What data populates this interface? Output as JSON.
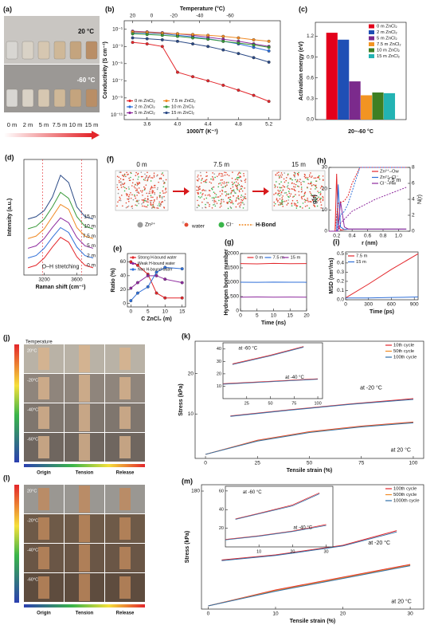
{
  "panels": {
    "a": {
      "label": "(a)",
      "temps": [
        "20 °C",
        "-60 °C"
      ],
      "concentrations": [
        "0 m",
        "2 m",
        "5 m",
        "7.5 m",
        "10 m",
        "15 m"
      ]
    },
    "f": {
      "label": "(f)",
      "snapshots": [
        "0 m",
        "7.5 m",
        "15 m"
      ],
      "legend": [
        "Zn²⁺",
        "water",
        "Cl⁻",
        "H-Bond"
      ]
    },
    "j": {
      "label": "(j)",
      "scale_title": "Temperature",
      "temps": [
        "20°C",
        "-20°C",
        "-40°C",
        "-60°C"
      ],
      "columns": [
        "Origin",
        "Tension",
        "Release"
      ]
    },
    "l": {
      "label": "(l)",
      "temps": [
        "20°C",
        "-20°C",
        "-40°C",
        "-60°C"
      ],
      "columns": [
        "Origin",
        "Tension",
        "Release"
      ]
    }
  },
  "chart_data": [
    {
      "label": "(b)",
      "type": "line",
      "log": true,
      "markers": true,
      "legend": "lower left",
      "top_label": "Temperature (°C)",
      "x_label": "1000/T (K⁻¹)",
      "y_label": "Conductivity (S cm⁻¹)",
      "x": [
        3.41,
        3.6,
        3.8,
        4.0,
        4.2,
        4.4,
        4.6,
        4.8,
        5.0,
        5.2
      ],
      "xlim": [
        3.3,
        5.35
      ],
      "xticks": [
        3.6,
        {
          "value": 4,
          "label": "4.0"
        },
        4.4,
        4.8,
        5.2
      ],
      "top_ticks": [
        {
          "value": 3.41,
          "label": "20"
        },
        {
          "value": 3.66,
          "label": "0"
        },
        {
          "value": 3.95,
          "label": "-20"
        },
        {
          "value": 4.29,
          "label": "-40"
        },
        {
          "value": 4.69,
          "label": "-60"
        }
      ],
      "ylim": [
        3e-12,
        1
      ],
      "yticks": [
        {
          "value": 0.1,
          "label": "10⁻¹"
        },
        {
          "value": 0.001,
          "label": "10⁻³"
        },
        {
          "value": 1e-05,
          "label": "10⁻⁵"
        },
        {
          "value": 1e-07,
          "label": "10⁻⁷"
        },
        {
          "value": 1e-09,
          "label": "10⁻⁹"
        },
        {
          "value": 1e-11,
          "label": "10⁻¹¹"
        }
      ],
      "series": [
        {
          "name": "0 m ZnCl₂",
          "color": "#e3262b",
          "values": [
            0.003,
            0.002,
            0.001,
            1e-06,
            3e-07,
            1e-07,
            3e-08,
            8e-09,
            2e-09,
            4e-10
          ]
        },
        {
          "name": "2 m ZnCl₂",
          "color": "#2f6fd8",
          "values": [
            0.04,
            0.035,
            0.03,
            0.02,
            0.013,
            0.008,
            0.004,
            0.002,
            0.0008,
            0.0003
          ]
        },
        {
          "name": "5 m ZnCl₂",
          "color": "#8e2a9e",
          "values": [
            0.06,
            0.05,
            0.04,
            0.03,
            0.02,
            0.012,
            0.007,
            0.004,
            0.002,
            0.001
          ]
        },
        {
          "name": "7.5 m ZnCl₂",
          "color": "#f08a24",
          "values": [
            0.05,
            0.045,
            0.035,
            0.03,
            0.025,
            0.02,
            0.015,
            0.01,
            0.006,
            0.004
          ]
        },
        {
          "name": "10 m ZnCl₂",
          "color": "#3a9a3a",
          "values": [
            0.03,
            0.025,
            0.02,
            0.015,
            0.01,
            0.007,
            0.004,
            0.0025,
            0.0015,
            0.0008
          ]
        },
        {
          "name": "15 m ZnCl₂",
          "color": "#2b4a86",
          "values": [
            0.01,
            0.008,
            0.006,
            0.004,
            0.002,
            0.001,
            0.0004,
            0.00015,
            5e-05,
            1.5e-05
          ]
        }
      ]
    },
    {
      "label": "(c)",
      "type": "bar",
      "legend": "upper right",
      "x_label": "20~-60 °C",
      "y_label": "Activation energy (eV)",
      "categories": [
        "0 m ZnCl₂",
        "2 m ZnCl₂",
        "5 m ZnCl₂",
        "7.5 m ZnCl₂",
        "10 m ZnCl₂",
        "15 m ZnCl₂"
      ],
      "values": [
        1.25,
        1.15,
        0.55,
        0.35,
        0.39,
        0.38
      ],
      "colors": [
        "#e3001b",
        "#1f4fb5",
        "#7b2a8c",
        "#f29422",
        "#3d7f23",
        "#23b3b3"
      ],
      "ylim": [
        0,
        1.4
      ],
      "yticks": [
        {
          "value": 0,
          "label": "0.0"
        },
        0.3,
        0.6,
        0.9,
        1.2
      ]
    },
    {
      "label": "(d)",
      "type": "line",
      "legend": "inline",
      "x_label": "Raman shift (cm⁻¹)",
      "y_label": "Intensity (a.u.)",
      "annotations": [
        "O–H stretching"
      ],
      "x": [
        3000,
        3100,
        3200,
        3300,
        3400,
        3500,
        3600,
        3700,
        3800
      ],
      "xlim": [
        2950,
        3850
      ],
      "xticks": [
        3200,
        3600
      ],
      "ylim": [
        0,
        9.5
      ],
      "guide_lines": [
        3180,
        3660
      ],
      "series": [
        {
          "name": "15 m",
          "color": "#2b4a86",
          "values": [
            4.6,
            4.8,
            5.3,
            6.4,
            8.2,
            7.6,
            5.6,
            4.8,
            4.6
          ]
        },
        {
          "name": "10 m",
          "color": "#3a9a3a",
          "values": [
            3.8,
            4.0,
            4.6,
            5.6,
            6.8,
            6.3,
            4.8,
            4.0,
            3.8
          ]
        },
        {
          "name": "7.5 m",
          "color": "#f08a24",
          "values": [
            3.0,
            3.2,
            3.8,
            4.8,
            5.8,
            5.4,
            3.9,
            3.2,
            3.0
          ]
        },
        {
          "name": "5 m",
          "color": "#8e2a9e",
          "values": [
            2.2,
            2.4,
            3.0,
            3.9,
            4.7,
            4.3,
            3.1,
            2.4,
            2.2
          ]
        },
        {
          "name": "2 m",
          "color": "#2f6fd8",
          "values": [
            1.4,
            1.6,
            2.2,
            3.1,
            3.9,
            3.5,
            2.3,
            1.6,
            1.4
          ]
        },
        {
          "name": "0 m",
          "color": "#e3262b",
          "values": [
            0.6,
            0.8,
            1.4,
            2.3,
            3.1,
            2.7,
            1.5,
            0.8,
            0.6
          ]
        }
      ]
    },
    {
      "label": "(e)",
      "type": "line",
      "markers": true,
      "legend": "upper left",
      "x_label": "C ZnCl₂ (m)",
      "y_label": "Ratio (%)",
      "x": [
        0,
        2,
        5,
        7.5,
        10,
        15
      ],
      "xlim": [
        -1,
        16
      ],
      "xticks": [
        0,
        5,
        10,
        15
      ],
      "ylim": [
        -5,
        72
      ],
      "yticks": [
        0,
        20,
        40,
        60
      ],
      "series": [
        {
          "name": "Strong H-bound water",
          "color": "#e3262b",
          "values": [
            60,
            55,
            42,
            15,
            8,
            8
          ]
        },
        {
          "name": "Weak H-bound water",
          "color": "#8e2a9e",
          "values": [
            22,
            30,
            40,
            40,
            35,
            30
          ]
        },
        {
          "name": "Non H-bound water",
          "color": "#2f6fd8",
          "values": [
            4,
            15,
            24,
            45,
            52,
            50
          ]
        }
      ]
    },
    {
      "label": "(g)",
      "type": "line",
      "legend": "upper center",
      "x_label": "Time (ns)",
      "y_label": "Hydrogen bonds number",
      "x": [
        0,
        5,
        10,
        15,
        20
      ],
      "xlim": [
        0,
        20
      ],
      "xticks": [
        0,
        5,
        10,
        15,
        20
      ],
      "ylim": [
        0,
        2000
      ],
      "yticks": [
        0,
        500,
        1000,
        1500,
        2000
      ],
      "series": [
        {
          "name": "0 m",
          "color": "#e3262b",
          "values": [
            1650,
            1640,
            1655,
            1645,
            1650
          ]
        },
        {
          "name": "7.5 m",
          "color": "#2f6fd8",
          "values": [
            1000,
            995,
            1005,
            1000,
            998
          ]
        },
        {
          "name": "15 m",
          "color": "#8e2a9e",
          "values": [
            480,
            485,
            478,
            482,
            480
          ]
        }
      ]
    },
    {
      "label": "(h)",
      "type": "line",
      "legend": "upper right",
      "x_label": "r (nm)",
      "y_label": "g(r)",
      "y2_label": "N(r)",
      "annotations": [
        "7.5 m"
      ],
      "x": [
        0.1,
        0.18,
        0.2,
        0.22,
        0.25,
        0.3,
        0.35,
        0.4,
        0.5,
        0.7,
        1.1
      ],
      "xlim": [
        0.1,
        1.15
      ],
      "xticks": [
        0.2,
        0.4,
        0.6,
        0.8,
        {
          "value": 1,
          "label": "1.0"
        }
      ],
      "ylim": [
        0,
        30
      ],
      "yticks": [
        0,
        10,
        20,
        30
      ],
      "y2lim": [
        0,
        8
      ],
      "y2ticks": [
        0,
        2,
        4,
        6,
        8
      ],
      "series": [
        {
          "name": "Zn²⁺–Ow",
          "color": "#e3262b",
          "values": [
            0,
            0,
            27,
            3,
            0.5,
            0.8,
            1,
            1,
            1,
            1,
            1
          ]
        },
        {
          "name": "Zn²⁺–Cl⁻",
          "color": "#2f6fd8",
          "values": [
            0,
            0,
            0,
            22,
            2,
            0.8,
            1,
            1,
            1,
            1,
            1
          ]
        },
        {
          "name": "Cl⁻–Hw",
          "color": "#8e2a9e",
          "values": [
            0,
            0,
            0,
            1,
            14,
            2,
            1,
            1,
            1,
            1,
            1
          ]
        },
        {
          "color": "#e3262b",
          "axis": "y2",
          "dash": true,
          "values": [
            0,
            0,
            2,
            3.5,
            3.6,
            3.8,
            4.5,
            6,
            8,
            8,
            8
          ]
        },
        {
          "color": "#2f6fd8",
          "axis": "y2",
          "dash": true,
          "values": [
            0,
            0,
            0,
            1,
            2,
            2.5,
            3.5,
            5,
            8,
            8,
            8
          ]
        },
        {
          "color": "#8e2a9e",
          "axis": "y2",
          "dash": true,
          "values": [
            0,
            0,
            0,
            0,
            1,
            1.5,
            2,
            2.5,
            3,
            4,
            5.5
          ]
        }
      ]
    },
    {
      "label": "(i)",
      "type": "line",
      "legend": "upper left",
      "x_label": "Time (ps)",
      "y_label": "MSD (nm²/ns)",
      "x": [
        0,
        300,
        600,
        950
      ],
      "xlim": [
        0,
        950
      ],
      "xticks": [
        0,
        300,
        600,
        900
      ],
      "ylim": [
        0,
        0.52
      ],
      "yticks": [
        {
          "value": 0,
          "label": "0.0"
        },
        0.1,
        0.2,
        0.3,
        0.4,
        0.5
      ],
      "series": [
        {
          "name": "7.5 m",
          "color": "#e3262b",
          "values": [
            0.02,
            0.17,
            0.33,
            0.5
          ]
        },
        {
          "name": "15 m",
          "color": "#2f6fd8",
          "values": [
            0.02,
            0.02,
            0.025,
            0.03
          ]
        }
      ]
    },
    {
      "label": "(k)",
      "type": "line",
      "legend": "upper right",
      "x_label": "Tensile strain (%)",
      "y_label": "Stress (kPa)",
      "annotations": [
        "at -20 °C",
        "at 20 °C"
      ],
      "xlim": [
        -5,
        105
      ],
      "xticks": [
        0,
        25,
        50,
        75,
        100
      ],
      "ylim": [
        -1,
        28
      ],
      "yticks": [
        10,
        20
      ],
      "series": [
        {
          "name": "10th cycle",
          "color": "#e3262b",
          "x": [
            0,
            25,
            50,
            75,
            100
          ],
          "values": [
            0,
            3.5,
            5.6,
            7,
            8
          ]
        },
        {
          "name": "50th cycle",
          "color": "#f08a24",
          "x": [
            0,
            25,
            50,
            75,
            100
          ],
          "values": [
            0,
            3.4,
            5.5,
            6.9,
            7.9
          ]
        },
        {
          "name": "100th cycle",
          "color": "#2f6fa8",
          "x": [
            0,
            25,
            50,
            75,
            100
          ],
          "values": [
            0,
            3.3,
            5.4,
            6.8,
            7.8
          ]
        },
        {
          "color": "#e3262b",
          "x": [
            12,
            40,
            70,
            100
          ],
          "values": [
            9.5,
            11,
            12.5,
            13.8
          ]
        },
        {
          "color": "#2f6fa8",
          "x": [
            12,
            40,
            70,
            100
          ],
          "values": [
            9.4,
            10.9,
            12.4,
            13.6
          ]
        }
      ]
    },
    {
      "type": "line",
      "annotations": [
        "at -60 °C",
        "at -40 °C"
      ],
      "xlim": [
        0,
        105
      ],
      "xticks": [
        25,
        50,
        75,
        100
      ],
      "ylim": [
        0,
        45
      ],
      "yticks": [
        10,
        20,
        30,
        40
      ],
      "series": [
        {
          "color": "#e3262b",
          "x": [
            0,
            50,
            100
          ],
          "values": [
            12,
            14,
            16
          ]
        },
        {
          "color": "#2f6fa8",
          "x": [
            0,
            50,
            100
          ],
          "values": [
            11.6,
            13.6,
            15.6
          ]
        },
        {
          "color": "#e3262b",
          "x": [
            10,
            50,
            85
          ],
          "values": [
            28,
            35,
            42
          ]
        },
        {
          "color": "#2f6fa8",
          "x": [
            10,
            50,
            85
          ],
          "values": [
            27.5,
            34.5,
            41.5
          ]
        }
      ]
    },
    {
      "label": "(m)",
      "type": "line",
      "legend": "upper right",
      "x_label": "Tensile strain (%)",
      "y_label": "Stress (kPa)",
      "annotations": [
        "at -20 °C",
        "at 20 °C"
      ],
      "xlim": [
        -1,
        32
      ],
      "xticks": [
        0,
        10,
        20,
        30
      ],
      "ylim": [
        -5,
        190
      ],
      "yticks": [
        180
      ],
      "series": [
        {
          "name": "100th cycle",
          "color": "#e3262b",
          "x": [
            0,
            10,
            20,
            30
          ],
          "values": [
            0,
            25,
            45,
            65
          ]
        },
        {
          "name": "500th cycle",
          "color": "#f08a24",
          "x": [
            0,
            10,
            20,
            30
          ],
          "values": [
            0,
            24,
            44,
            64
          ]
        },
        {
          "name": "1000th cycle",
          "color": "#2f6fa8",
          "x": [
            0,
            10,
            20,
            30
          ],
          "values": [
            0,
            23,
            43,
            63
          ]
        },
        {
          "color": "#e3262b",
          "x": [
            2,
            10,
            20,
            28
          ],
          "values": [
            72,
            80,
            95,
            118
          ]
        },
        {
          "color": "#2f6fa8",
          "x": [
            2,
            10,
            20,
            28
          ],
          "values": [
            71,
            79,
            94,
            116
          ]
        }
      ]
    },
    {
      "type": "line",
      "annotations": [
        "at -60 °C",
        "at -40 °C"
      ],
      "xlim": [
        0,
        32
      ],
      "xticks": [
        10,
        20,
        30
      ],
      "ylim": [
        0,
        65
      ],
      "yticks": [
        20,
        40,
        60
      ],
      "series": [
        {
          "color": "#e3262b",
          "x": [
            0,
            10,
            20,
            30
          ],
          "values": [
            8,
            12,
            17,
            24
          ]
        },
        {
          "color": "#2f6fa8",
          "x": [
            0,
            10,
            20,
            30
          ],
          "values": [
            7.5,
            11.5,
            16.5,
            23
          ]
        },
        {
          "color": "#e3262b",
          "x": [
            3,
            10,
            20,
            28
          ],
          "values": [
            30,
            36,
            45,
            58
          ]
        },
        {
          "color": "#2f6fa8",
          "x": [
            3,
            10,
            20,
            28
          ],
          "values": [
            29.5,
            35.5,
            44,
            57
          ]
        }
      ]
    }
  ]
}
